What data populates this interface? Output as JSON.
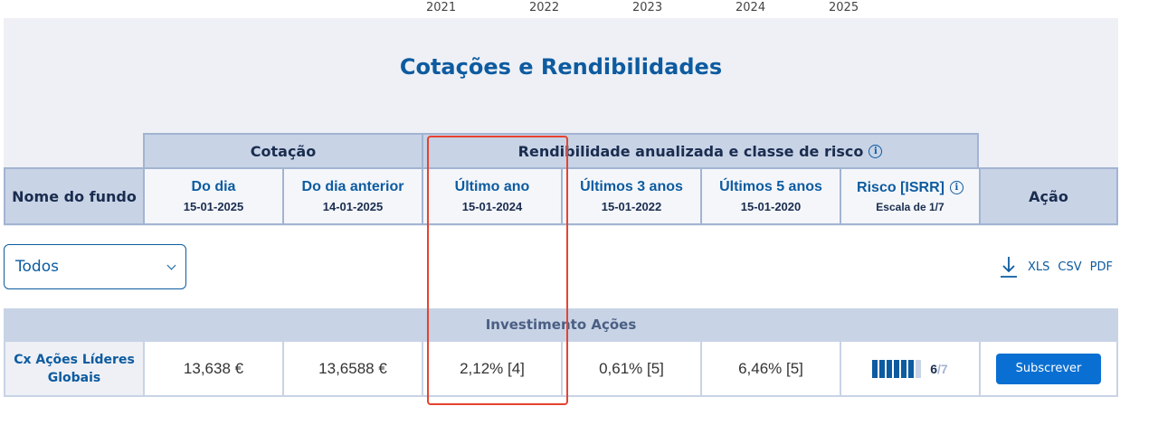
{
  "timeline": {
    "years": [
      "2021",
      "2022",
      "2023",
      "2024",
      "2025"
    ]
  },
  "title": "Cotações e Rendibilidades",
  "groups": {
    "cotacao": "Cotação",
    "rendibilidade": "Rendibilidade anualizada e classe de risco"
  },
  "columns": {
    "nome": "Nome do fundo",
    "do_dia": {
      "label": "Do dia",
      "date": "15-01-2025"
    },
    "dia_anterior": {
      "label": "Do dia anterior",
      "date": "14-01-2025"
    },
    "ultimo_ano": {
      "label": "Último ano",
      "date": "15-01-2024"
    },
    "ultimos_3": {
      "label": "Últimos 3 anos",
      "date": "15-01-2022"
    },
    "ultimos_5": {
      "label": "Últimos 5 anos",
      "date": "15-01-2020"
    },
    "risco": {
      "label": "Risco [ISRR]",
      "sub": "Escala de 1/7"
    },
    "acao": "Ação"
  },
  "filter": {
    "selected": "Todos"
  },
  "downloads": {
    "xls": "XLS",
    "csv": "CSV",
    "pdf": "PDF"
  },
  "section": "Investimento Ações",
  "rows": [
    {
      "name_line1": "Cx Ações Líderes",
      "name_line2": "Globais",
      "do_dia": "13,638 €",
      "dia_anterior": "13,6588 €",
      "ultimo_ano": "2,12% [4]",
      "ultimos_3": "0,61% [5]",
      "ultimos_5": "6,46% [5]",
      "risk_level": 6,
      "risk_num": "6",
      "risk_den": "/7",
      "action": "Subscrever"
    }
  ]
}
